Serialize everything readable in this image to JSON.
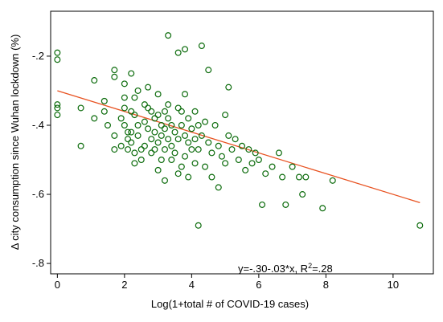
{
  "chart_data": {
    "type": "scatter",
    "xlabel": "Log(1+total # of COVID-19 cases)",
    "ylabel": "Δ city consumption since Wuhan lockdown (%)",
    "xlim": [
      -0.2,
      11.2
    ],
    "ylim": [
      -0.83,
      -0.07
    ],
    "xticks": [
      0,
      2,
      4,
      6,
      8,
      10
    ],
    "yticks": [
      -0.2,
      -0.4,
      -0.6,
      -0.8
    ],
    "xtick_labels": [
      "0",
      "2",
      "4",
      "6",
      "8",
      "10"
    ],
    "ytick_labels": [
      "-.2",
      "-.4",
      "-.6",
      "-.8"
    ],
    "grid": false,
    "annotation": "y=-.30-.03*x, R²=.28",
    "colors": {
      "points": "#0b6b0b",
      "fit_line": "#e8511f"
    },
    "fit_line": {
      "intercept": -0.3,
      "slope": -0.03,
      "x_range": [
        0,
        10.8
      ]
    },
    "series": [
      {
        "type": "scatter",
        "points": [
          [
            0,
            -0.19
          ],
          [
            0,
            -0.21
          ],
          [
            0,
            -0.34
          ],
          [
            0,
            -0.35
          ],
          [
            0,
            -0.37
          ],
          [
            0.7,
            -0.35
          ],
          [
            0.7,
            -0.46
          ],
          [
            1.1,
            -0.27
          ],
          [
            1.1,
            -0.38
          ],
          [
            1.4,
            -0.33
          ],
          [
            1.4,
            -0.36
          ],
          [
            1.5,
            -0.4
          ],
          [
            1.7,
            -0.24
          ],
          [
            1.7,
            -0.26
          ],
          [
            1.7,
            -0.43
          ],
          [
            1.7,
            -0.47
          ],
          [
            1.9,
            -0.38
          ],
          [
            1.9,
            -0.46
          ],
          [
            2.0,
            -0.28
          ],
          [
            2.0,
            -0.32
          ],
          [
            2.0,
            -0.35
          ],
          [
            2.0,
            -0.4
          ],
          [
            2.1,
            -0.42
          ],
          [
            2.1,
            -0.44
          ],
          [
            2.1,
            -0.47
          ],
          [
            2.2,
            -0.25
          ],
          [
            2.2,
            -0.36
          ],
          [
            2.2,
            -0.42
          ],
          [
            2.2,
            -0.45
          ],
          [
            2.3,
            -0.48
          ],
          [
            2.3,
            -0.51
          ],
          [
            2.3,
            -0.32
          ],
          [
            2.3,
            -0.37
          ],
          [
            2.4,
            -0.3
          ],
          [
            2.4,
            -0.4
          ],
          [
            2.4,
            -0.43
          ],
          [
            2.5,
            -0.47
          ],
          [
            2.5,
            -0.5
          ],
          [
            2.6,
            -0.39
          ],
          [
            2.6,
            -0.34
          ],
          [
            2.6,
            -0.46
          ],
          [
            2.7,
            -0.29
          ],
          [
            2.7,
            -0.35
          ],
          [
            2.7,
            -0.41
          ],
          [
            2.8,
            -0.36
          ],
          [
            2.8,
            -0.44
          ],
          [
            2.8,
            -0.48
          ],
          [
            2.9,
            -0.38
          ],
          [
            2.9,
            -0.42
          ],
          [
            2.9,
            -0.47
          ],
          [
            3.0,
            -0.31
          ],
          [
            3.0,
            -0.37
          ],
          [
            3.0,
            -0.45
          ],
          [
            3.0,
            -0.53
          ],
          [
            3.1,
            -0.4
          ],
          [
            3.1,
            -0.43
          ],
          [
            3.1,
            -0.5
          ],
          [
            3.2,
            -0.36
          ],
          [
            3.2,
            -0.41
          ],
          [
            3.2,
            -0.47
          ],
          [
            3.2,
            -0.56
          ],
          [
            3.3,
            -0.14
          ],
          [
            3.3,
            -0.34
          ],
          [
            3.3,
            -0.38
          ],
          [
            3.3,
            -0.44
          ],
          [
            3.4,
            -0.4
          ],
          [
            3.4,
            -0.46
          ],
          [
            3.4,
            -0.5
          ],
          [
            3.5,
            -0.42
          ],
          [
            3.5,
            -0.48
          ],
          [
            3.6,
            -0.19
          ],
          [
            3.6,
            -0.35
          ],
          [
            3.6,
            -0.44
          ],
          [
            3.6,
            -0.54
          ],
          [
            3.7,
            -0.36
          ],
          [
            3.7,
            -0.4
          ],
          [
            3.7,
            -0.52
          ],
          [
            3.8,
            -0.18
          ],
          [
            3.8,
            -0.31
          ],
          [
            3.8,
            -0.43
          ],
          [
            3.8,
            -0.49
          ],
          [
            3.9,
            -0.38
          ],
          [
            3.9,
            -0.45
          ],
          [
            3.9,
            -0.55
          ],
          [
            4.0,
            -0.41
          ],
          [
            4.0,
            -0.47
          ],
          [
            4.1,
            -0.36
          ],
          [
            4.1,
            -0.44
          ],
          [
            4.1,
            -0.51
          ],
          [
            4.2,
            -0.4
          ],
          [
            4.2,
            -0.47
          ],
          [
            4.2,
            -0.69
          ],
          [
            4.3,
            -0.17
          ],
          [
            4.3,
            -0.43
          ],
          [
            4.4,
            -0.39
          ],
          [
            4.4,
            -0.52
          ],
          [
            4.5,
            -0.24
          ],
          [
            4.5,
            -0.45
          ],
          [
            4.6,
            -0.48
          ],
          [
            4.6,
            -0.55
          ],
          [
            4.7,
            -0.4
          ],
          [
            4.8,
            -0.46
          ],
          [
            4.8,
            -0.58
          ],
          [
            4.9,
            -0.49
          ],
          [
            5.0,
            -0.37
          ],
          [
            5.0,
            -0.51
          ],
          [
            5.1,
            -0.29
          ],
          [
            5.1,
            -0.43
          ],
          [
            5.2,
            -0.47
          ],
          [
            5.3,
            -0.44
          ],
          [
            5.4,
            -0.5
          ],
          [
            5.5,
            -0.46
          ],
          [
            5.6,
            -0.53
          ],
          [
            5.7,
            -0.47
          ],
          [
            5.8,
            -0.51
          ],
          [
            5.9,
            -0.48
          ],
          [
            6.0,
            -0.5
          ],
          [
            6.1,
            -0.63
          ],
          [
            6.2,
            -0.54
          ],
          [
            6.4,
            -0.52
          ],
          [
            6.6,
            -0.48
          ],
          [
            6.7,
            -0.55
          ],
          [
            6.8,
            -0.63
          ],
          [
            7.0,
            -0.52
          ],
          [
            7.2,
            -0.55
          ],
          [
            7.3,
            -0.6
          ],
          [
            7.4,
            -0.55
          ],
          [
            7.9,
            -0.64
          ],
          [
            8.2,
            -0.56
          ],
          [
            10.8,
            -0.69
          ]
        ]
      }
    ]
  }
}
